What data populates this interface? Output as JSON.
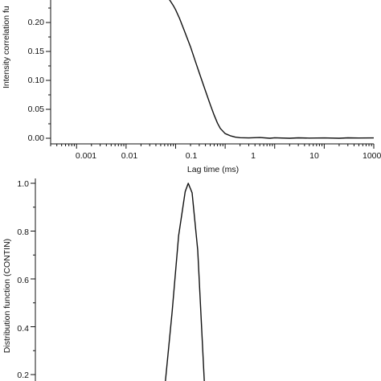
{
  "chart_data": [
    {
      "type": "line",
      "x_scale": "log",
      "xlim": [
        0.0003,
        1000
      ],
      "ylim": [
        -0.005,
        0.3
      ],
      "xlabel": "Lag time (ms)",
      "ylabel": "Intensity correlation fu",
      "x_ticks": [
        0.001,
        0.01,
        0.1,
        1,
        10,
        1000
      ],
      "x_tick_labels": [
        "0.001",
        "0.01",
        "0.1",
        "1",
        "10",
        "1000"
      ],
      "y_ticks": [
        0.0,
        0.05,
        0.1,
        0.15,
        0.2
      ],
      "y_tick_labels": [
        "0.00",
        "0.05",
        "0.10",
        "0.15",
        "0.20"
      ],
      "series": [
        {
          "x": [
            0.06,
            0.07,
            0.08,
            0.09,
            0.1,
            0.12,
            0.15,
            0.2,
            0.25,
            0.3,
            0.4,
            0.5,
            0.6,
            0.7,
            0.8,
            1.0,
            1.3,
            1.6,
            2,
            3,
            5,
            8,
            10,
            20,
            30,
            50,
            100,
            200,
            300,
            500,
            1000
          ],
          "y": [
            0.25,
            0.243,
            0.236,
            0.229,
            0.222,
            0.207,
            0.186,
            0.158,
            0.133,
            0.113,
            0.082,
            0.058,
            0.04,
            0.026,
            0.017,
            0.008,
            0.004,
            0.002,
            0.001,
            0.0005,
            0.0012,
            0.0,
            0.0008,
            0.0,
            0.0007,
            0.0003,
            0.0006,
            0.0,
            0.0007,
            0.0004,
            0.0006
          ]
        }
      ]
    },
    {
      "type": "line",
      "x_scale": "log",
      "xlim": [
        0.0003,
        1000
      ],
      "ylim": [
        0.18,
        1.02
      ],
      "xlabel": "",
      "ylabel": "Distribution function (CONTIN)",
      "y_ticks": [
        0.2,
        0.4,
        0.6,
        0.8,
        1.0
      ],
      "y_tick_labels": [
        "0.2",
        "0.4",
        "0.6",
        "0.8",
        "1.0"
      ],
      "series": [
        {
          "x": [
            0.062,
            0.085,
            0.115,
            0.156,
            0.18,
            0.215,
            0.28,
            0.38
          ],
          "y": [
            0.17,
            0.46,
            0.78,
            0.965,
            1.0,
            0.96,
            0.72,
            0.17
          ]
        }
      ]
    }
  ]
}
